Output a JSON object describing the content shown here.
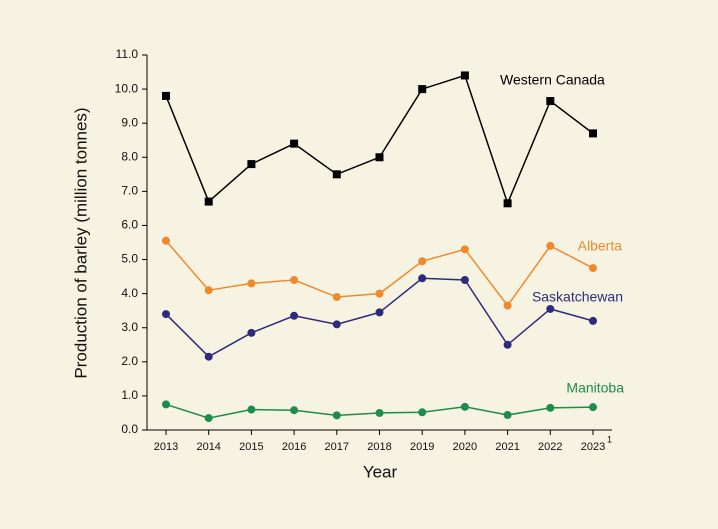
{
  "chart_data": {
    "type": "line",
    "x_label": "Year",
    "y_label": "Production of barley (million tonnes)",
    "categories": [
      "2013",
      "2014",
      "2015",
      "2016",
      "2017",
      "2018",
      "2019",
      "2020",
      "2021",
      "2022",
      "2023"
    ],
    "category_footnote": "1",
    "ylim": [
      0,
      11
    ],
    "yticks": [
      {
        "value": 0,
        "label": "0.0"
      },
      {
        "value": 1,
        "label": "1.0"
      },
      {
        "value": 2,
        "label": "2.0"
      },
      {
        "value": 3,
        "label": "3.0"
      },
      {
        "value": 4,
        "label": "4.0"
      },
      {
        "value": 5,
        "label": "5.0"
      },
      {
        "value": 6,
        "label": "6.0"
      },
      {
        "value": 7,
        "label": "7.0"
      },
      {
        "value": 8,
        "label": "8.0"
      },
      {
        "value": 9,
        "label": "9.0"
      },
      {
        "value": 10,
        "label": "10.0"
      },
      {
        "value": 11,
        "label": "11.0"
      }
    ],
    "series": [
      {
        "name": "Western Canada",
        "color": "#000000",
        "marker": "square",
        "values": [
          9.8,
          6.7,
          7.8,
          8.4,
          7.5,
          8.0,
          10.0,
          10.4,
          6.65,
          9.65,
          8.7
        ]
      },
      {
        "name": "Alberta",
        "color": "#f0892c",
        "marker": "circle",
        "values": [
          5.55,
          4.1,
          4.3,
          4.4,
          3.9,
          4.0,
          4.95,
          5.3,
          3.65,
          5.4,
          4.75
        ]
      },
      {
        "name": "Saskatchewan",
        "color": "#2e2b7c",
        "marker": "circle",
        "values": [
          3.4,
          2.15,
          2.85,
          3.35,
          3.1,
          3.45,
          4.45,
          4.4,
          2.5,
          3.55,
          3.2
        ]
      },
      {
        "name": "Manitoba",
        "color": "#1e8c4a",
        "marker": "circle",
        "values": [
          0.75,
          0.35,
          0.6,
          0.58,
          0.43,
          0.5,
          0.52,
          0.68,
          0.44,
          0.65,
          0.67
        ]
      }
    ]
  }
}
